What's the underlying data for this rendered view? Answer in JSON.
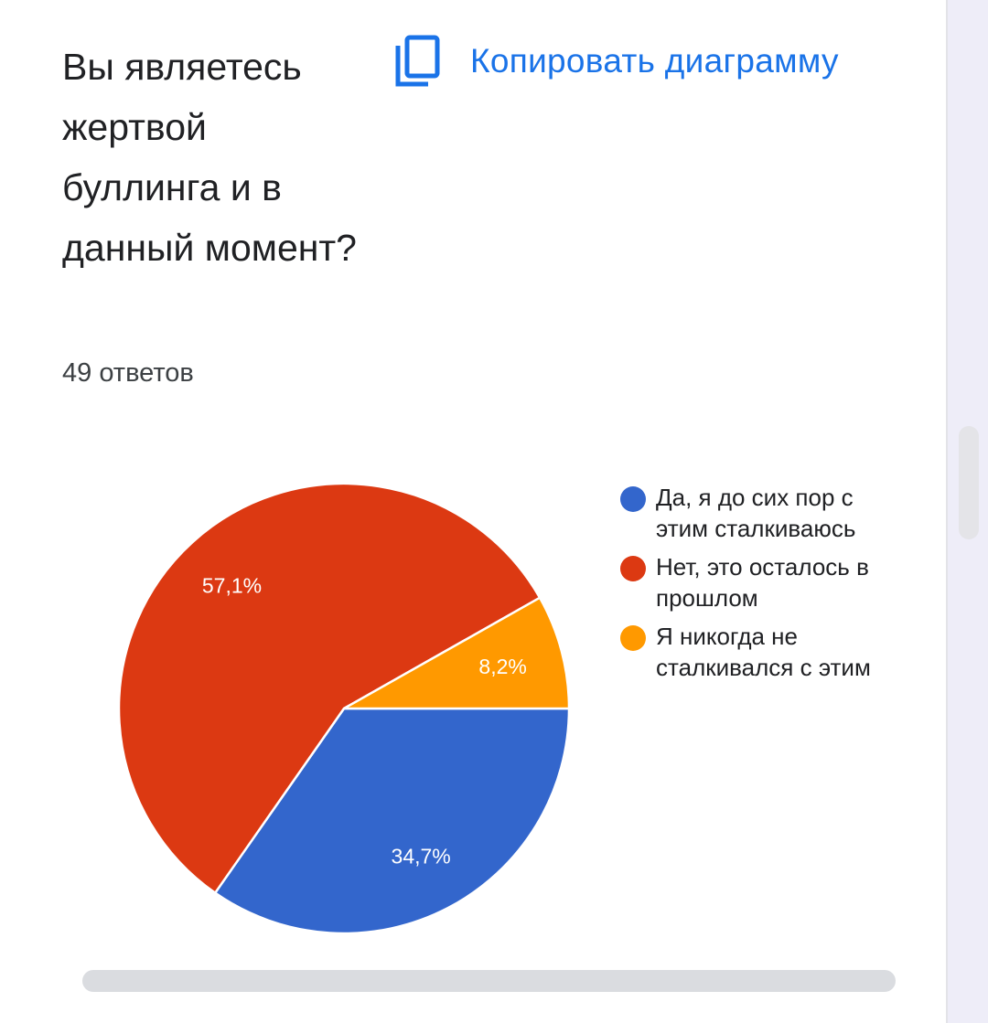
{
  "question": {
    "title": "Вы являетесь жертвой буллинга и в данный момент?",
    "responses": "49 ответов"
  },
  "copy_button": {
    "label": "Копировать диаграмму",
    "icon": "copy-icon"
  },
  "colors": {
    "accent": "#1a73e8",
    "blue": "#3366cc",
    "red": "#dc3912",
    "orange": "#ff9900"
  },
  "chart_data": {
    "type": "pie",
    "legend_placement": "right",
    "slices": [
      {
        "label": "Да, я до сих пор с этим сталкиваюсь",
        "value": 34.7,
        "display": "34,7%",
        "color": "#3366cc"
      },
      {
        "label": "Нет, это осталось в прошлом",
        "value": 57.1,
        "display": "57,1%",
        "color": "#dc3912"
      },
      {
        "label": "Я никогда не сталкивался с этим",
        "value": 8.2,
        "display": "8,2%",
        "color": "#ff9900"
      }
    ]
  }
}
